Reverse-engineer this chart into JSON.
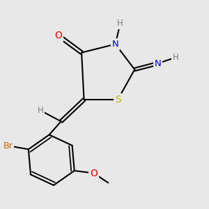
{
  "background_color": "#e8e8e8",
  "atom_colors": {
    "C": "#000000",
    "H": "#7a7a7a",
    "N": "#0000dd",
    "O": "#dd0000",
    "S": "#bbbb00",
    "Br": "#cc6600"
  },
  "bond_color": "#000000",
  "bond_width": 1.5,
  "font_size": 8.5,
  "fig_size": [
    3.0,
    3.0
  ],
  "dpi": 100
}
